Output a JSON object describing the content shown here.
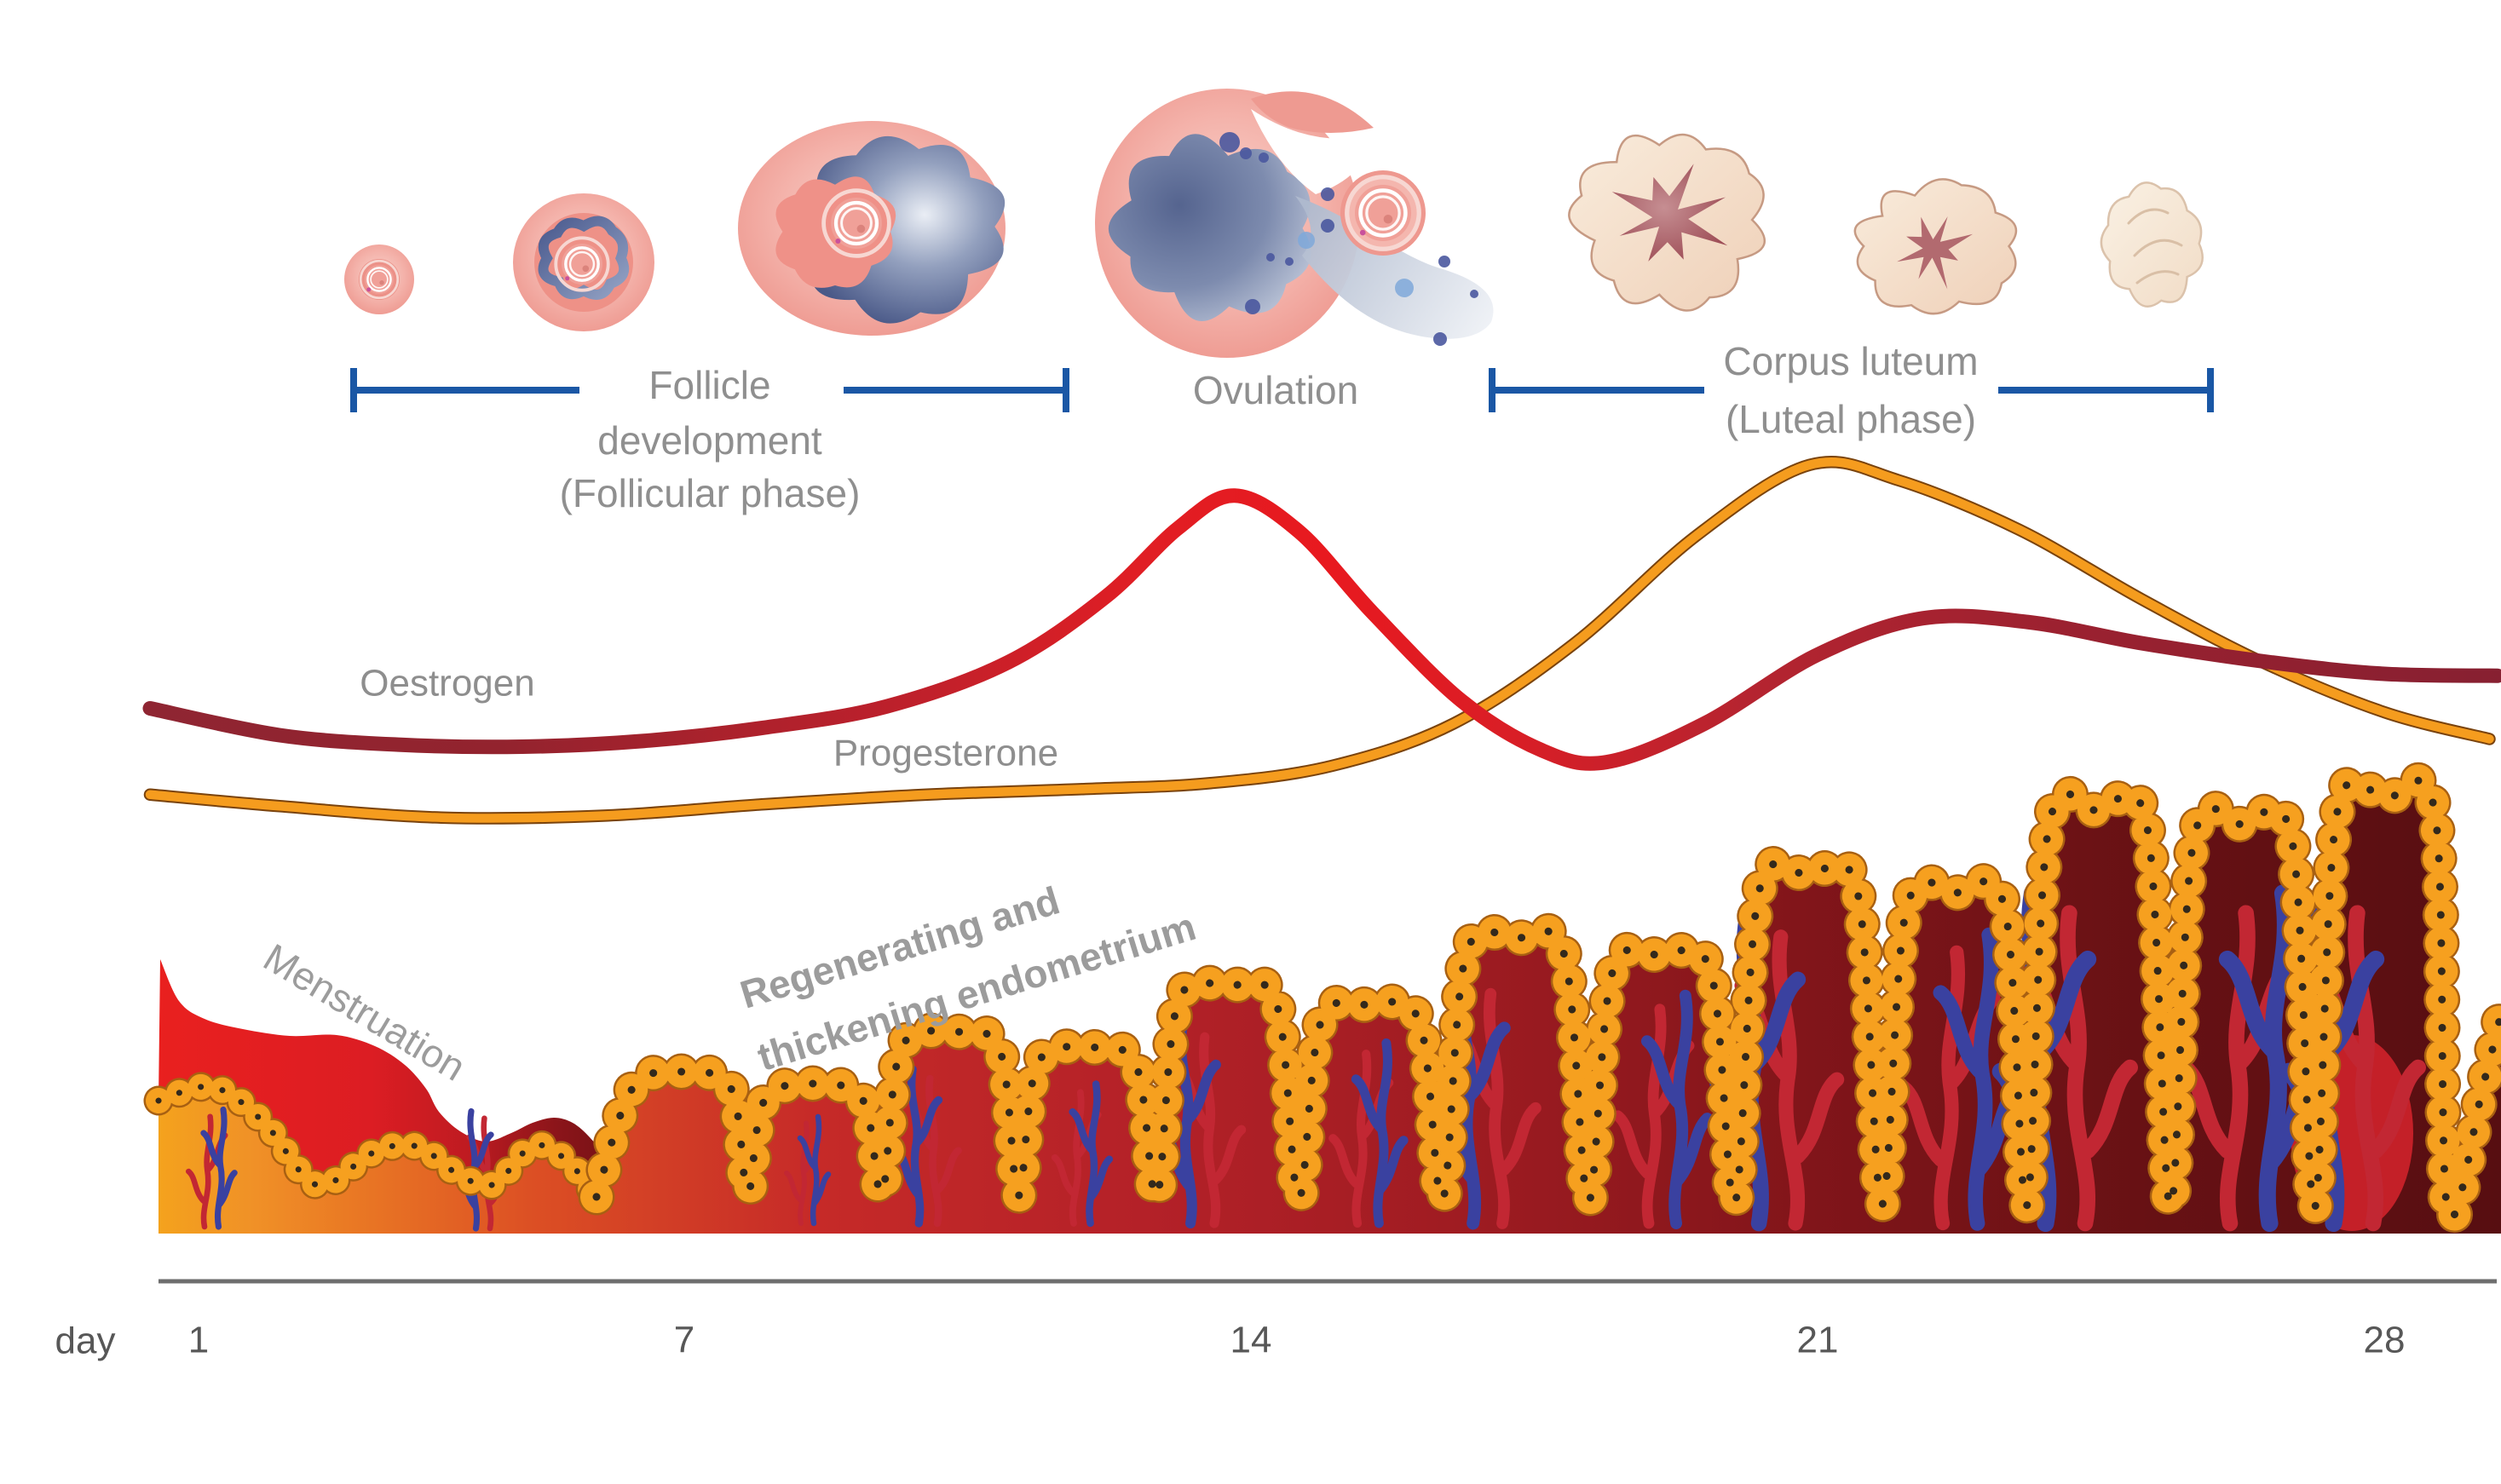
{
  "figure": {
    "title_hint": "menstrual cycle diagram",
    "phases": {
      "follicular": {
        "line1": "Follicle",
        "line2": "development",
        "line3": "(Follicular phase)",
        "bracket_day_start": 2.9,
        "bracket_day_end": 11.7
      },
      "ovulation": {
        "label": "Ovulation"
      },
      "luteal": {
        "line1": "Corpus luteum",
        "line2": "(Luteal phase)",
        "bracket_day_start": 17.0,
        "bracket_day_end": 25.9
      }
    },
    "hormones": {
      "oestrogen_label": "Oestrogen",
      "progesterone_label": "Progesterone"
    },
    "endometrium": {
      "menstruation_label": "Menstruation",
      "regen_line1": "Regenerating and",
      "regen_line2": "thickening endometrium"
    },
    "axis": {
      "day_label": "day",
      "ticks": [
        1,
        7,
        14,
        21,
        28
      ]
    },
    "icons": [
      "primordial-follicle-icon",
      "growing-follicle-icon",
      "mature-follicle-icon",
      "ovulation-egg-release-icon",
      "corpus-luteum-icon",
      "regressing-corpus-luteum-icon",
      "corpus-albicans-icon"
    ],
    "colors": {
      "bracket_blue": "#1A57A5",
      "oestrogen_red": "#D42127",
      "oestrogen_dark": "#8F2532",
      "progesterone_orange": "#F59C1E",
      "progesterone_edge": "#7A430D",
      "cell_orange": "#F6A01F",
      "cell_outline": "#A86012",
      "cell_nucleus": "#33291C",
      "vessel_red": "#C22733",
      "vessel_blue": "#3A41A0",
      "endometrium_bright": "#E9201F",
      "endometrium_dark": "#570E11",
      "follicle_pink": "#ED958C",
      "follicle_navy": "#4A5988",
      "corpus_beige": "#F2DCC6",
      "axis_gray": "#6E6E6E",
      "label_gray": "#8F8F8F"
    }
  },
  "chart_data": {
    "type": "line",
    "title": "",
    "xlabel": "day",
    "ylabel": "",
    "x_axis": {
      "ticks": [
        1,
        7,
        14,
        21,
        28
      ],
      "range": [
        0.4,
        29.4
      ]
    },
    "ylim": [
      0,
      1
    ],
    "grid": false,
    "legend": "inline labels near curves",
    "series": [
      {
        "name": "Oestrogen",
        "color": "#D42127",
        "points": [
          [
            0.4,
            0.33
          ],
          [
            2,
            0.26
          ],
          [
            3.5,
            0.235
          ],
          [
            5,
            0.23
          ],
          [
            6.5,
            0.245
          ],
          [
            8,
            0.28
          ],
          [
            9.5,
            0.335
          ],
          [
            11,
            0.45
          ],
          [
            12.2,
            0.62
          ],
          [
            13.1,
            0.8
          ],
          [
            13.8,
            0.885
          ],
          [
            14.6,
            0.79
          ],
          [
            15.5,
            0.58
          ],
          [
            16.6,
            0.35
          ],
          [
            17.6,
            0.22
          ],
          [
            18.4,
            0.19
          ],
          [
            19.6,
            0.29
          ],
          [
            21,
            0.47
          ],
          [
            22.3,
            0.565
          ],
          [
            23.6,
            0.555
          ],
          [
            25,
            0.5
          ],
          [
            26.6,
            0.45
          ],
          [
            28,
            0.42
          ],
          [
            29.4,
            0.415
          ]
        ]
      },
      {
        "name": "Progesterone",
        "color": "#F59C1E",
        "points": [
          [
            0.4,
            0.105
          ],
          [
            2,
            0.075
          ],
          [
            4,
            0.045
          ],
          [
            6,
            0.05
          ],
          [
            8,
            0.08
          ],
          [
            10,
            0.105
          ],
          [
            12,
            0.12
          ],
          [
            13.5,
            0.135
          ],
          [
            15,
            0.18
          ],
          [
            16.5,
            0.29
          ],
          [
            18,
            0.5
          ],
          [
            19.5,
            0.78
          ],
          [
            20.9,
            0.965
          ],
          [
            22,
            0.925
          ],
          [
            23.5,
            0.795
          ],
          [
            25,
            0.615
          ],
          [
            26.5,
            0.45
          ],
          [
            28,
            0.32
          ],
          [
            29.3,
            0.25
          ]
        ]
      }
    ]
  }
}
